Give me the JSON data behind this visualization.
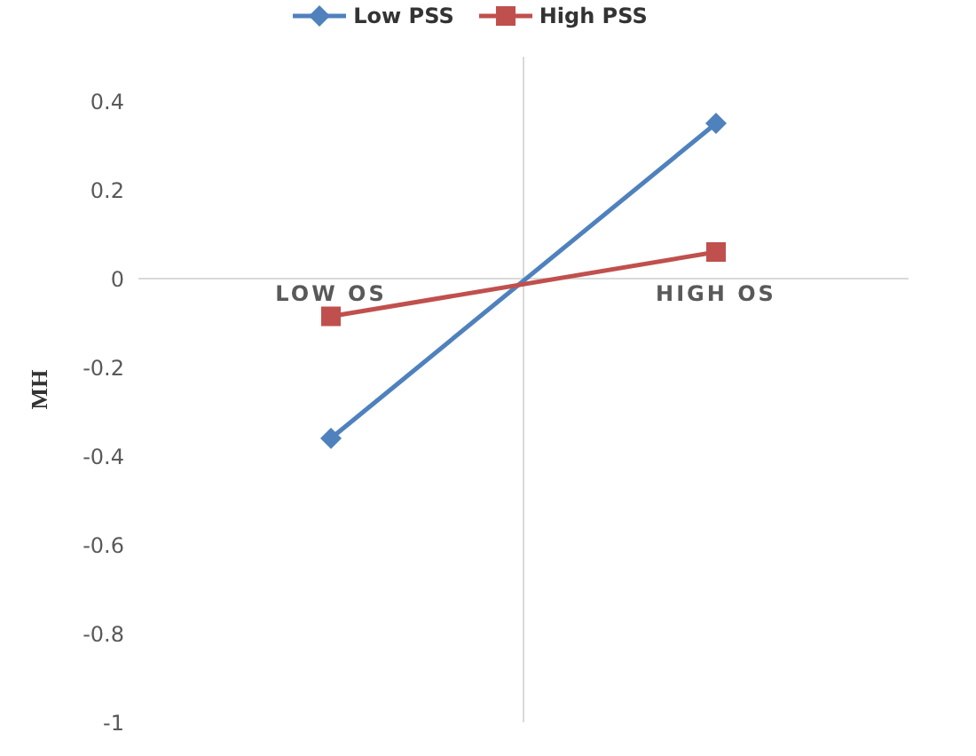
{
  "chart_data": {
    "type": "line",
    "ylabel": "MH",
    "categories": [
      "LOW OS",
      "HIGH OS"
    ],
    "series": [
      {
        "name": "Low PSS",
        "color": "#4f81bd",
        "marker": "diamond",
        "values": [
          -0.36,
          0.35
        ]
      },
      {
        "name": "High PSS",
        "color": "#c0504d",
        "marker": "square",
        "values": [
          -0.085,
          0.06
        ]
      }
    ],
    "ylim": [
      -1,
      0.5
    ],
    "yticks": [
      -1,
      -0.8,
      -0.6,
      -0.4,
      -0.2,
      0,
      0.2,
      0.4
    ],
    "grid": "x",
    "legend": "top",
    "line_style": "solid"
  }
}
